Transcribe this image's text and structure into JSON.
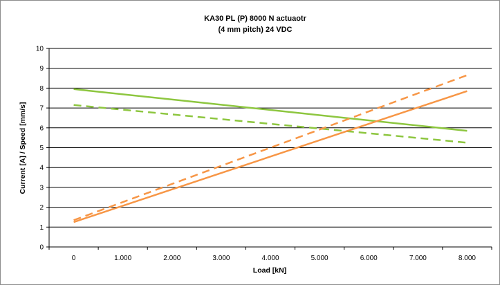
{
  "chart_data": {
    "type": "line",
    "title_lines": [
      "KA30 PL (P) 8000 N actuaotr",
      "(4 mm pitch) 24 VDC"
    ],
    "xlabel": "Load [kN]",
    "ylabel": "Current [A] / Speed [mm/s]",
    "x_ticks": [
      0,
      1000,
      2000,
      3000,
      4000,
      5000,
      6000,
      7000,
      8000
    ],
    "x_tick_labels": [
      "0",
      "1.000",
      "2.000",
      "3.000",
      "4.000",
      "5.000",
      "6.000",
      "7.000",
      "8.000"
    ],
    "xlim": [
      -500,
      8500
    ],
    "y_ticks": [
      0,
      1,
      2,
      3,
      4,
      5,
      6,
      7,
      8,
      9,
      10
    ],
    "y_tick_labels": [
      "0",
      "1",
      "2",
      "3",
      "4",
      "5",
      "6",
      "7",
      "8",
      "9",
      "10"
    ],
    "ylim": [
      0,
      10
    ],
    "grid": "horizontal",
    "legend": "none",
    "series": [
      {
        "style": "solid",
        "color": "#8dc63f",
        "x": [
          0,
          8000
        ],
        "y": [
          7.95,
          5.85
        ]
      },
      {
        "style": "dashed",
        "color": "#8dc63f",
        "x": [
          0,
          8000
        ],
        "y": [
          7.15,
          5.25
        ]
      },
      {
        "style": "solid",
        "color": "#f79646",
        "x": [
          0,
          8000
        ],
        "y": [
          1.25,
          7.85
        ]
      },
      {
        "style": "dashed",
        "color": "#f79646",
        "x": [
          0,
          8000
        ],
        "y": [
          1.35,
          8.65
        ]
      }
    ]
  }
}
